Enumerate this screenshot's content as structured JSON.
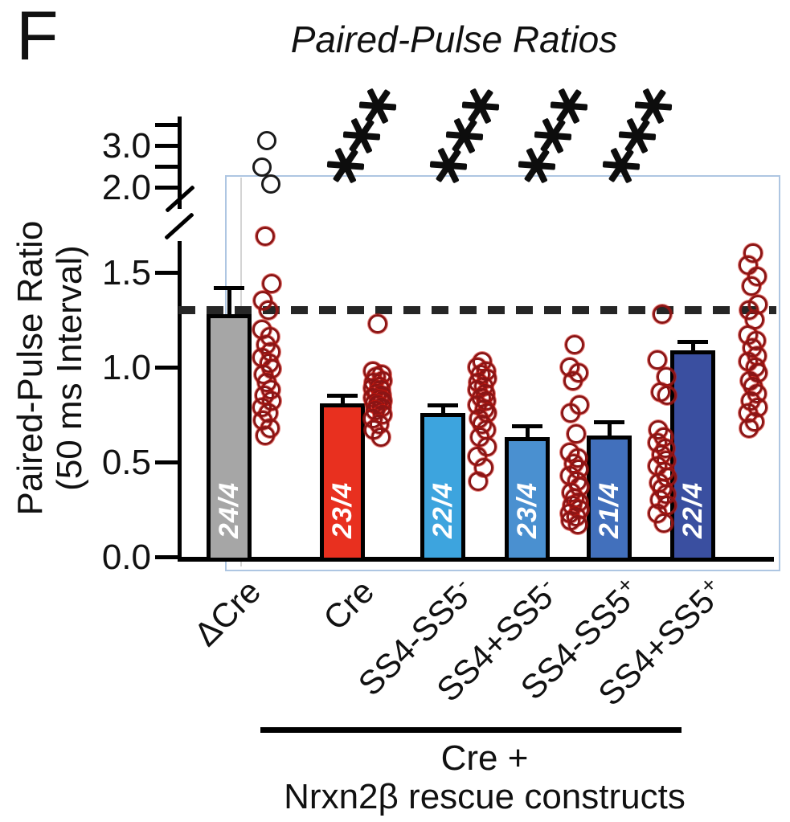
{
  "panel_label": "F",
  "title": "Paired-Pulse Ratios",
  "y_axis": {
    "label_line1": "Paired-Pulse Ratio",
    "label_line2": "(50 ms Interval)",
    "upper_ticks": [
      {
        "label": "3.0",
        "value": 3.0
      },
      {
        "label": "2.0",
        "value": 2.0
      }
    ],
    "upper_minor_ticks": [
      3.5,
      2.5
    ],
    "lower_ticks": [
      {
        "label": "1.5",
        "value": 1.5
      },
      {
        "label": "1.0",
        "value": 1.0
      },
      {
        "label": "0.5",
        "value": 0.5
      },
      {
        "label": "0.0",
        "value": 0.0
      }
    ]
  },
  "x_axis": {
    "rescue_group_label_line1": "Cre +",
    "rescue_group_label_line2": "Nrxn2β rescue constructs",
    "rescue_group_members": [
      "Cre",
      "SS4-SS5-",
      "SS4+SS5-",
      "SS4-SS5+",
      "SS4+SS5+"
    ]
  },
  "reference_line": {
    "value": 1.3,
    "style": "dashed",
    "color": "#262626"
  },
  "colors": {
    "point_stroke": "#8c1515",
    "point_outlier_stroke": "#1a1a1a",
    "annotation_box": "#aec6e2",
    "bar_border": "#000000"
  },
  "chart_data": {
    "type": "bar",
    "title": "Paired-Pulse Ratios",
    "xlabel": "",
    "ylabel": "Paired-Pulse Ratio (50 ms Interval)",
    "axis_break": true,
    "ylim_lower_segment": [
      0.0,
      1.65
    ],
    "ylim_upper_segment": [
      2.0,
      3.6
    ],
    "reference_line_y": 1.3,
    "legend": "none",
    "grid": false,
    "categories": [
      "ΔCre",
      "Cre",
      "SS4-SS5-",
      "SS4+SS5-",
      "SS4-SS5+",
      "SS4+SS5+"
    ],
    "series": [
      {
        "label": "ΔCre",
        "label_base": "ΔCre",
        "label_sup": "",
        "n_label": "24/4",
        "color": "#a6a6a6",
        "mean": 1.28,
        "error_top": 1.43,
        "significance": "",
        "points_above_break": [
          3.12,
          2.48,
          2.07
        ],
        "points": [
          1.69,
          1.44,
          1.35,
          1.3,
          1.2,
          1.16,
          1.12,
          1.08,
          1.05,
          1.02,
          0.99,
          0.96,
          0.92,
          0.88,
          0.85,
          0.82,
          0.79,
          0.76,
          0.72,
          0.68,
          0.64
        ]
      },
      {
        "label": "Cre",
        "label_base": "Cre",
        "label_sup": "",
        "n_label": "23/4",
        "color": "#e8301f",
        "mean": 0.81,
        "error_top": 0.86,
        "significance": "***",
        "points_above_break": [],
        "points": [
          1.23,
          0.98,
          0.96,
          0.95,
          0.93,
          0.92,
          0.9,
          0.89,
          0.88,
          0.86,
          0.85,
          0.84,
          0.83,
          0.82,
          0.81,
          0.8,
          0.79,
          0.77,
          0.75,
          0.73,
          0.7,
          0.67,
          0.63
        ]
      },
      {
        "label": "SS4-SS5-",
        "label_base": "SS4-SS5",
        "label_sup": "-",
        "n_label": "22/4",
        "color": "#3da4de",
        "mean": 0.76,
        "error_top": 0.81,
        "significance": "***",
        "points_above_break": [],
        "points": [
          1.03,
          1.0,
          0.98,
          0.96,
          0.94,
          0.92,
          0.9,
          0.88,
          0.86,
          0.84,
          0.82,
          0.8,
          0.78,
          0.76,
          0.73,
          0.7,
          0.67,
          0.63,
          0.58,
          0.53,
          0.47,
          0.4
        ]
      },
      {
        "label": "SS4+SS5-",
        "label_base": "SS4+SS5",
        "label_sup": "-",
        "n_label": "23/4",
        "color": "#4a90d0",
        "mean": 0.63,
        "error_top": 0.7,
        "significance": "***",
        "points_above_break": [],
        "points": [
          1.12,
          1.0,
          0.97,
          0.93,
          0.8,
          0.76,
          0.65,
          0.55,
          0.52,
          0.49,
          0.46,
          0.43,
          0.4,
          0.37,
          0.34,
          0.31,
          0.29,
          0.27,
          0.25,
          0.23,
          0.21,
          0.19,
          0.17
        ]
      },
      {
        "label": "SS4-SS5+",
        "label_base": "SS4-SS5",
        "label_sup": "+",
        "n_label": "21/4",
        "color": "#4270bc",
        "mean": 0.64,
        "error_top": 0.72,
        "significance": "***",
        "points_above_break": [],
        "points": [
          1.28,
          1.04,
          0.95,
          0.87,
          0.85,
          0.67,
          0.63,
          0.6,
          0.57,
          0.54,
          0.51,
          0.48,
          0.45,
          0.42,
          0.39,
          0.36,
          0.33,
          0.3,
          0.27,
          0.23,
          0.18
        ]
      },
      {
        "label": "SS4+SS5+",
        "label_base": "SS4+SS5",
        "label_sup": "+",
        "n_label": "22/4",
        "color": "#3a4fa0",
        "mean": 1.09,
        "error_top": 1.145,
        "significance": "",
        "points_above_break": [],
        "points": [
          1.6,
          1.54,
          1.48,
          1.43,
          1.33,
          1.3,
          1.25,
          1.17,
          1.14,
          1.1,
          1.06,
          1.03,
          1.0,
          0.97,
          0.93,
          0.9,
          0.86,
          0.82,
          0.79,
          0.76,
          0.71,
          0.68
        ]
      }
    ]
  }
}
